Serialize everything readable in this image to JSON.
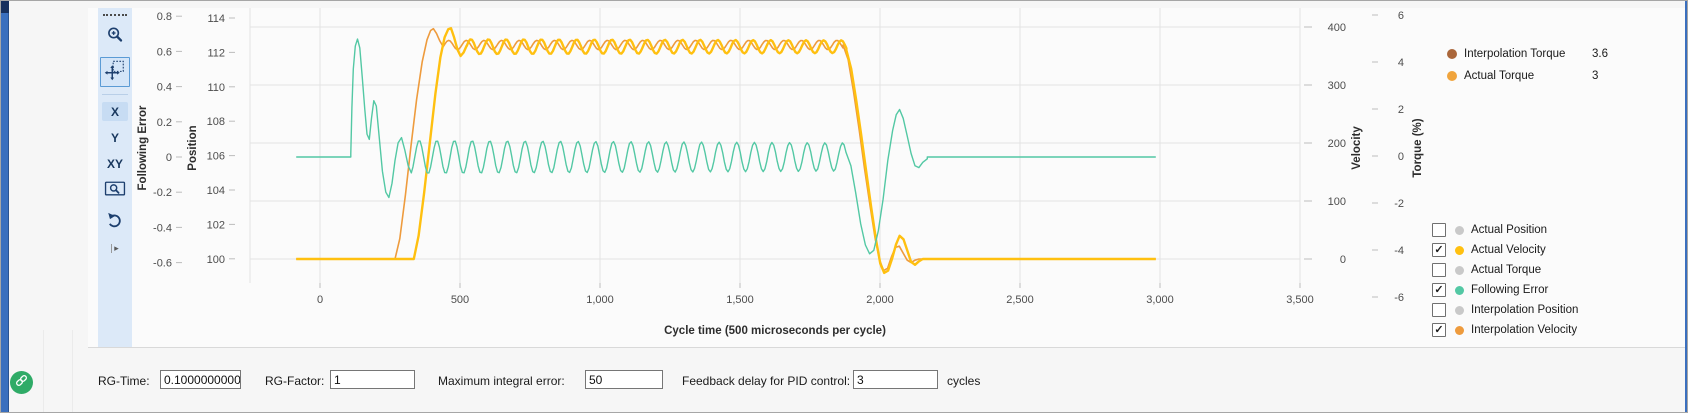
{
  "toolbar": {
    "x_label": "X",
    "y_label": "Y",
    "xy_label": "XY"
  },
  "chart_data": {
    "type": "line",
    "x_axis": {
      "title": "Cycle time (500 microseconds per cycle)",
      "ticks": [
        0,
        500,
        1000,
        1500,
        2000,
        2500,
        3000,
        3500
      ],
      "tick_labels": [
        "0",
        "500",
        "1,000",
        "1,500",
        "2,000",
        "2,500",
        "3,000",
        "3,500"
      ],
      "range": [
        -250,
        3510
      ]
    },
    "y_axes": [
      {
        "id": "fe",
        "title": "Following Error",
        "ticks": [
          0.8,
          0.6,
          0.4,
          0.2,
          0,
          -0.2,
          -0.4,
          -0.6
        ],
        "tick_labels": [
          "0.8",
          "0.6",
          "0.4",
          "0.2",
          "0",
          "-0.2",
          "-0.4",
          "-0.6"
        ]
      },
      {
        "id": "pos",
        "title": "Position",
        "ticks": [
          114,
          112,
          110,
          108,
          106,
          104,
          102,
          100
        ],
        "tick_labels": [
          "114",
          "112",
          "110",
          "108",
          "106",
          "104",
          "102",
          "100"
        ]
      },
      {
        "id": "vel",
        "title": "Velocity",
        "ticks": [
          400,
          300,
          200,
          100,
          0
        ],
        "tick_labels": [
          "400",
          "300",
          "200",
          "100",
          "0"
        ]
      },
      {
        "id": "torque",
        "title": "Torque (%)",
        "ticks": [
          6,
          4,
          2,
          0,
          -2,
          -4,
          -6
        ],
        "tick_labels": [
          "6",
          "4",
          "2",
          "0",
          "-2",
          "-4",
          "-6"
        ]
      }
    ],
    "series": [
      {
        "name": "Interpolation Velocity",
        "axis": "vel",
        "color": "#ee9b3d",
        "width": 1.6,
        "segments": [
          {
            "type": "flat",
            "x0": -85,
            "x1": 268,
            "y": 0
          },
          {
            "type": "pts",
            "pts": [
              [
                268,
                0
              ],
              [
                285,
                35
              ],
              [
                305,
                110
              ],
              [
                325,
                195
              ],
              [
                345,
                275
              ],
              [
                365,
                340
              ],
              [
                382,
                378
              ],
              [
                395,
                394
              ],
              [
                405,
                397
              ],
              [
                416,
                389
              ],
              [
                428,
                376
              ],
              [
                440,
                366
              ]
            ]
          },
          {
            "type": "osc",
            "x0": 440,
            "x1": 1868,
            "mid": 369,
            "amp0": 8,
            "amp1": 8,
            "period": 63,
            "phase": -0.38
          },
          {
            "type": "pts",
            "pts": [
              [
                1868,
                369
              ],
              [
                1886,
                344
              ],
              [
                1905,
                290
              ],
              [
                1925,
                225
              ],
              [
                1945,
                155
              ],
              [
                1965,
                90
              ],
              [
                1983,
                35
              ],
              [
                1999,
                -2
              ],
              [
                2013,
                -20
              ],
              [
                2027,
                -16
              ],
              [
                2041,
                4
              ],
              [
                2055,
                20
              ],
              [
                2069,
                22
              ],
              [
                2083,
                10
              ],
              [
                2097,
                -2
              ],
              [
                2111,
                -6
              ],
              [
                2125,
                -2
              ],
              [
                2139,
                0
              ]
            ]
          },
          {
            "type": "flat",
            "x0": 2139,
            "x1": 2985,
            "y": 0
          }
        ]
      },
      {
        "name": "Actual Velocity",
        "axis": "vel",
        "color": "#ffc010",
        "width": 2.4,
        "segments": [
          {
            "type": "flat",
            "x0": -85,
            "x1": 335,
            "y": 0
          },
          {
            "type": "pts",
            "pts": [
              [
                335,
                0
              ],
              [
                352,
                40
              ],
              [
                372,
                115
              ],
              [
                392,
                200
              ],
              [
                412,
                285
              ],
              [
                430,
                348
              ],
              [
                445,
                382
              ],
              [
                458,
                396
              ],
              [
                468,
                398
              ],
              [
                479,
                382
              ],
              [
                491,
                361
              ],
              [
                502,
                350
              ],
              [
                513,
                356
              ],
              [
                524,
                368
              ]
            ]
          },
          {
            "type": "osc",
            "x0": 524,
            "x1": 1880,
            "mid": 366,
            "amp0": 13,
            "amp1": 11,
            "period": 63,
            "phase": 0.1
          },
          {
            "type": "pts",
            "pts": [
              [
                1880,
                360
              ],
              [
                1897,
                328
              ],
              [
                1915,
                274
              ],
              [
                1933,
                214
              ],
              [
                1951,
                150
              ],
              [
                1969,
                88
              ],
              [
                1986,
                32
              ],
              [
                2001,
                -8
              ],
              [
                2015,
                -24
              ],
              [
                2029,
                -20
              ],
              [
                2043,
                0
              ],
              [
                2057,
                25
              ],
              [
                2070,
                40
              ],
              [
                2084,
                34
              ],
              [
                2097,
                15
              ],
              [
                2111,
                -5
              ],
              [
                2125,
                -10
              ],
              [
                2139,
                -4
              ],
              [
                2153,
                0
              ]
            ]
          },
          {
            "type": "flat",
            "x0": 2153,
            "x1": 2985,
            "y": 0
          }
        ]
      },
      {
        "name": "Following Error",
        "axis": "fe",
        "color": "#53c8a4",
        "width": 1.4,
        "segments": [
          {
            "type": "flat",
            "x0": -85,
            "x1": 110,
            "y": 0
          },
          {
            "type": "pts",
            "pts": [
              [
                110,
                0.02
              ],
              [
                114,
                0.28
              ],
              [
                119,
                0.5
              ],
              [
                126,
                0.63
              ],
              [
                134,
                0.67
              ],
              [
                142,
                0.62
              ],
              [
                151,
                0.45
              ],
              [
                160,
                0.27
              ],
              [
                168,
                0.13
              ],
              [
                176,
                0.1
              ],
              [
                184,
                0.22
              ],
              [
                192,
                0.32
              ],
              [
                201,
                0.29
              ],
              [
                211,
                0.12
              ],
              [
                223,
                -0.08
              ],
              [
                235,
                -0.2
              ],
              [
                246,
                -0.23
              ],
              [
                257,
                -0.15
              ],
              [
                268,
                -0.02
              ],
              [
                279,
                0.08
              ],
              [
                291,
                0.11
              ],
              [
                303,
                0.04
              ],
              [
                315,
                -0.05
              ],
              [
                326,
                -0.09
              ]
            ]
          },
          {
            "type": "osc",
            "x0": 326,
            "x1": 1878,
            "mid": 0,
            "amp0": 0.095,
            "amp1": 0.08,
            "period": 63,
            "phase": -1.25
          },
          {
            "type": "pts",
            "pts": [
              [
                1878,
                0.03
              ],
              [
                1896,
                -0.05
              ],
              [
                1913,
                -0.2
              ],
              [
                1931,
                -0.38
              ],
              [
                1948,
                -0.5
              ],
              [
                1963,
                -0.55
              ],
              [
                1978,
                -0.53
              ],
              [
                1994,
                -0.42
              ],
              [
                2011,
                -0.24
              ],
              [
                2028,
                -0.02
              ],
              [
                2045,
                0.15
              ],
              [
                2058,
                0.24
              ],
              [
                2070,
                0.27
              ],
              [
                2083,
                0.22
              ],
              [
                2097,
                0.12
              ],
              [
                2111,
                0.02
              ],
              [
                2125,
                -0.05
              ],
              [
                2139,
                -0.06
              ],
              [
                2153,
                -0.03
              ],
              [
                2169,
                -0.01
              ]
            ]
          },
          {
            "type": "flat",
            "x0": 2169,
            "x1": 2985,
            "y": 0
          }
        ]
      }
    ]
  },
  "readout": {
    "items": [
      {
        "label": "Interpolation Torque",
        "value": "3.6",
        "color": "#aa663a"
      },
      {
        "label": "Actual Torque",
        "value": "3",
        "color": "#f0a43c"
      }
    ]
  },
  "legend": {
    "items": [
      {
        "label": "Actual Position",
        "checked": false,
        "color": "#c9c9c9"
      },
      {
        "label": "Actual Velocity",
        "checked": true,
        "color": "#ffc010"
      },
      {
        "label": "Actual Torque",
        "checked": false,
        "color": "#c9c9c9"
      },
      {
        "label": "Following Error",
        "checked": true,
        "color": "#53c8a4"
      },
      {
        "label": "Interpolation Position",
        "checked": false,
        "color": "#c9c9c9"
      },
      {
        "label": "Interpolation Velocity",
        "checked": true,
        "color": "#ee9b3d"
      }
    ]
  },
  "form": {
    "fields": [
      {
        "label": "RG-Time:",
        "value": "0.100000000000"
      },
      {
        "label": "RG-Factor:",
        "value": "1"
      },
      {
        "label": "Maximum integral error:",
        "value": "50"
      },
      {
        "label": "Feedback delay for PID control:",
        "value": "3"
      }
    ],
    "suffix": "cycles"
  }
}
